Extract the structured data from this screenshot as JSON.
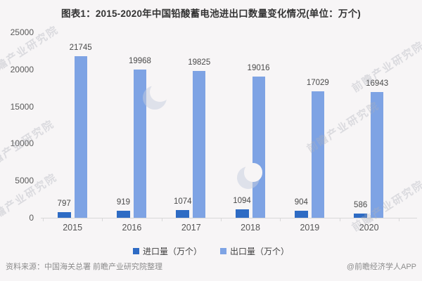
{
  "title": "图表1：2015-2020年中国铅酸蓄电池进出口数量变化情况(单位：万个)",
  "chart_data": {
    "type": "bar",
    "categories": [
      "2015",
      "2016",
      "2017",
      "2018",
      "2019",
      "2020"
    ],
    "series": [
      {
        "name": "进口量（万个）",
        "color": "#2E6BC4",
        "values": [
          797,
          919,
          1074,
          1094,
          904,
          586
        ]
      },
      {
        "name": "出口量（万个）",
        "color": "#7EA3E4",
        "values": [
          21745,
          19968,
          19825,
          19016,
          17029,
          16943
        ]
      }
    ],
    "ylabel": "",
    "xlabel": "",
    "ylim": [
      0,
      25000
    ],
    "yticks": [
      0,
      5000,
      10000,
      15000,
      20000,
      25000
    ],
    "grid": false,
    "legend_position": "bottom",
    "value_labels": true
  },
  "footer": {
    "source": "资料来源：中国海关总署 前瞻产业研究院整理",
    "credit": "@前瞻经济学人APP"
  },
  "watermark": {
    "text": "前瞻产业研究院"
  }
}
